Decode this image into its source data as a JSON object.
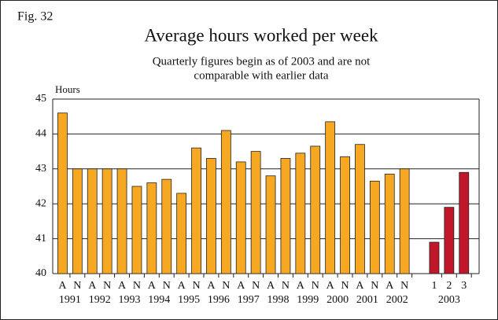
{
  "chart_data": {
    "type": "bar",
    "figure_label": "Fig. 32",
    "title": "Average hours worked per week",
    "subtitle": [
      "Quarterly figures begin as of 2003 and are not",
      "comparable with earlier data"
    ],
    "y_label": "Hours",
    "categories": [
      "A",
      "N",
      "A",
      "N",
      "A",
      "N",
      "A",
      "N",
      "A",
      "N",
      "A",
      "N",
      "A",
      "N",
      "A",
      "N",
      "A",
      "N",
      "A",
      "N",
      "A",
      "N",
      "A",
      "N",
      null,
      "1",
      "2",
      "3"
    ],
    "years": [
      "1991",
      "1992",
      "1993",
      "1994",
      "1995",
      "1996",
      "1997",
      "1998",
      "1999",
      "2000",
      "2001",
      "2002",
      "2003"
    ],
    "values": [
      44.6,
      43.0,
      43.0,
      43.0,
      43.0,
      42.5,
      42.6,
      42.7,
      42.3,
      43.6,
      43.3,
      44.1,
      43.2,
      43.5,
      42.8,
      43.3,
      43.45,
      43.65,
      44.35,
      43.35,
      43.7,
      42.65,
      42.85,
      43.0,
      null,
      40.9,
      41.9,
      42.9
    ],
    "colors": [
      "#f7a823",
      "#f7a823",
      "#f7a823",
      "#f7a823",
      "#f7a823",
      "#f7a823",
      "#f7a823",
      "#f7a823",
      "#f7a823",
      "#f7a823",
      "#f7a823",
      "#f7a823",
      "#f7a823",
      "#f7a823",
      "#f7a823",
      "#f7a823",
      "#f7a823",
      "#f7a823",
      "#f7a823",
      "#f7a823",
      "#f7a823",
      "#f7a823",
      "#f7a823",
      "#f7a823",
      null,
      "#c0172a",
      "#c0172a",
      "#c0172a"
    ],
    "ylim": [
      40,
      45
    ],
    "yticks": [
      40,
      41,
      42,
      43,
      44,
      45
    ],
    "grid": true
  }
}
